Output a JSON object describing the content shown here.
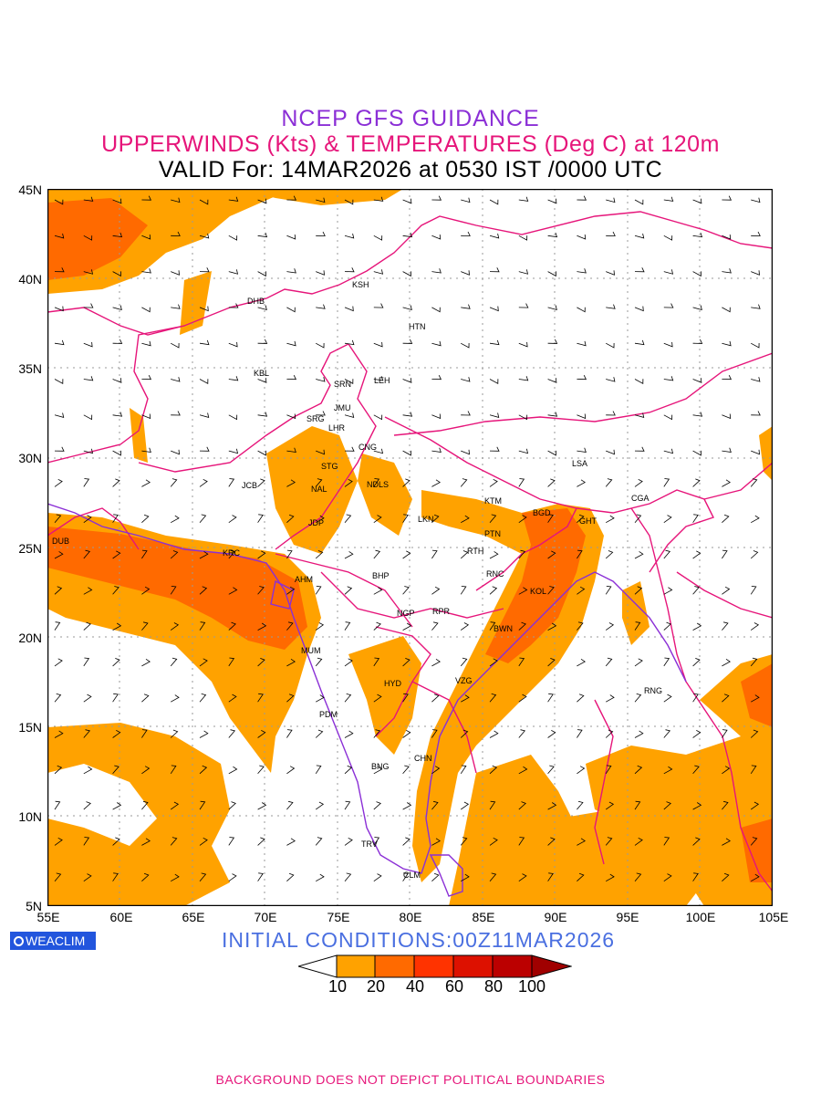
{
  "header": {
    "line1": "NCEP GFS GUIDANCE",
    "line2": "UPPERWINDS (Kts) & TEMPERATURES (Deg C) at 120m",
    "line3": "VALID For: 14MAR2026 at 0530 IST /0000 UTC"
  },
  "axes": {
    "lat_labels": [
      "45N",
      "40N",
      "35N",
      "30N",
      "25N",
      "20N",
      "15N",
      "10N",
      "5N"
    ],
    "lon_labels": [
      "55E",
      "60E",
      "65E",
      "70E",
      "75E",
      "80E",
      "85E",
      "90E",
      "95E",
      "100E",
      "105E"
    ]
  },
  "stations": [
    "KSH",
    "DHB",
    "HTN",
    "KBL",
    "SRN",
    "LEH",
    "JMU",
    "SRG",
    "LHR",
    "CNG",
    "STG",
    "NDLS",
    "LSA",
    "JCB",
    "NAL",
    "KTM",
    "BGD",
    "CGA",
    "JDP",
    "LKN",
    "GHT",
    "PTN",
    "DUB",
    "KRC",
    "RTH",
    "RNC",
    "AHM",
    "BHP",
    "KOL",
    "NGP",
    "RPR",
    "BWN",
    "MUM",
    "HYD",
    "VZG",
    "RNG",
    "PDM",
    "CHN",
    "BNG",
    "TRV",
    "CLM"
  ],
  "branding": {
    "logo_text": "WEACLIM"
  },
  "init_conditions": "INITIAL CONDITIONS:00Z11MAR2026",
  "legend": {
    "labels": [
      "10",
      "20",
      "40",
      "60",
      "80",
      "100"
    ],
    "colors": [
      "#ffffff",
      "#ffa200",
      "#ff6a00",
      "#ff3300",
      "#dd1100",
      "#bb0000",
      "#a00000"
    ]
  },
  "footer": "BACKGROUND DOES NOT DEPICT POLITICAL BOUNDARIES",
  "colors": {
    "boundary": "#e6157a",
    "coast": "#8b2fd6",
    "grid": "#999999"
  }
}
